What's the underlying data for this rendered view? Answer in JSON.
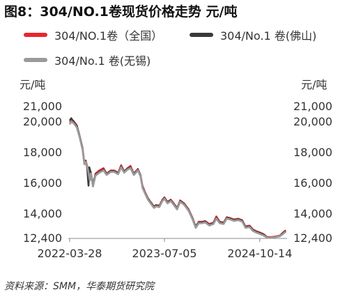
{
  "title": "图8：304/NO.1卷现货价格走势  元/吨",
  "source": "资料来源：SMM，华泰期货研究院",
  "chart_data": {
    "type": "line",
    "title": "304/NO.1卷现货价格走势",
    "unit_left": "元/吨",
    "unit_right": "元/吨",
    "ylim": [
      12400,
      21000
    ],
    "yticks": [
      "21,000",
      "20,000",
      "18,000",
      "16,000",
      "14,000",
      "12,400"
    ],
    "ytick_values": [
      21000,
      20000,
      18000,
      16000,
      14000,
      12400
    ],
    "xticks": [
      "2022-03-28",
      "2023-07-05",
      "2024-10-14"
    ],
    "xtick_dates": [
      "2022-03-28",
      "2023-07-05",
      "2024-10-14"
    ],
    "xlim": [
      "2022-03-28",
      "2025-02-18"
    ],
    "grid": false,
    "legend_position": "top",
    "series": [
      {
        "name": "304/NO.1卷（全国）",
        "color": "#e8262c",
        "points": [
          [
            "2022-03-28",
            19950
          ],
          [
            "2022-04-05",
            20150
          ],
          [
            "2022-04-18",
            20000
          ],
          [
            "2022-05-02",
            19750
          ],
          [
            "2022-05-16",
            19050
          ],
          [
            "2022-05-30",
            18300
          ],
          [
            "2022-06-08",
            17300
          ],
          [
            "2022-06-15",
            17450
          ],
          [
            "2022-06-25",
            16950
          ],
          [
            "2022-07-05",
            16200
          ],
          [
            "2022-07-10",
            16700
          ],
          [
            "2022-07-20",
            15800
          ],
          [
            "2022-08-01",
            16600
          ],
          [
            "2022-08-20",
            16800
          ],
          [
            "2022-09-10",
            16950
          ],
          [
            "2022-09-25",
            16600
          ],
          [
            "2022-10-15",
            16800
          ],
          [
            "2022-11-01",
            16800
          ],
          [
            "2022-11-20",
            16650
          ],
          [
            "2022-12-05",
            17150
          ],
          [
            "2022-12-20",
            16750
          ],
          [
            "2023-01-05",
            16950
          ],
          [
            "2023-01-20",
            17100
          ],
          [
            "2023-02-05",
            16600
          ],
          [
            "2023-02-25",
            16900
          ],
          [
            "2023-03-10",
            16500
          ],
          [
            "2023-03-20",
            15800
          ],
          [
            "2023-04-01",
            15400
          ],
          [
            "2023-04-15",
            15000
          ],
          [
            "2023-05-01",
            14700
          ],
          [
            "2023-05-15",
            14450
          ],
          [
            "2023-05-25",
            14550
          ],
          [
            "2023-06-10",
            14500
          ],
          [
            "2023-06-25",
            14900
          ],
          [
            "2023-07-05",
            15050
          ],
          [
            "2023-07-20",
            14750
          ],
          [
            "2023-08-05",
            14900
          ],
          [
            "2023-08-20",
            14650
          ],
          [
            "2023-09-05",
            14350
          ],
          [
            "2023-09-20",
            14850
          ],
          [
            "2023-10-10",
            14650
          ],
          [
            "2023-11-01",
            14250
          ],
          [
            "2023-11-20",
            13700
          ],
          [
            "2023-12-05",
            13150
          ],
          [
            "2023-12-20",
            13450
          ],
          [
            "2024-01-05",
            13450
          ],
          [
            "2024-01-20",
            13500
          ],
          [
            "2024-02-10",
            13300
          ],
          [
            "2024-03-01",
            13400
          ],
          [
            "2024-03-15",
            13800
          ],
          [
            "2024-04-01",
            13450
          ],
          [
            "2024-04-20",
            13400
          ],
          [
            "2024-05-05",
            13750
          ],
          [
            "2024-05-20",
            13700
          ],
          [
            "2024-06-10",
            13600
          ],
          [
            "2024-07-01",
            13650
          ],
          [
            "2024-07-20",
            13550
          ],
          [
            "2024-08-05",
            13150
          ],
          [
            "2024-08-25",
            13200
          ],
          [
            "2024-09-10",
            12950
          ],
          [
            "2024-09-25",
            12850
          ],
          [
            "2024-10-14",
            12750
          ],
          [
            "2024-11-01",
            12650
          ],
          [
            "2024-11-20",
            12450
          ],
          [
            "2024-12-10",
            12450
          ],
          [
            "2025-01-01",
            12500
          ],
          [
            "2025-01-20",
            12550
          ],
          [
            "2025-02-05",
            12750
          ],
          [
            "2025-02-18",
            12900
          ]
        ]
      },
      {
        "name": "304/No.1 卷(佛山)",
        "color": "#3a3a3a",
        "points": [
          [
            "2022-03-28",
            20050
          ],
          [
            "2022-04-05",
            20200
          ],
          [
            "2022-04-18",
            19900
          ],
          [
            "2022-05-02",
            19700
          ],
          [
            "2022-05-16",
            19000
          ],
          [
            "2022-05-30",
            18200
          ],
          [
            "2022-06-08",
            17250
          ],
          [
            "2022-06-15",
            17400
          ],
          [
            "2022-06-22",
            16900
          ],
          [
            "2022-06-28",
            15800
          ],
          [
            "2022-07-02",
            17000
          ],
          [
            "2022-07-10",
            16600
          ],
          [
            "2022-07-20",
            15900
          ],
          [
            "2022-08-01",
            16500
          ],
          [
            "2022-08-20",
            16700
          ],
          [
            "2022-09-10",
            16850
          ],
          [
            "2022-09-25",
            16550
          ],
          [
            "2022-10-15",
            16750
          ],
          [
            "2022-11-01",
            16750
          ],
          [
            "2022-11-20",
            16600
          ],
          [
            "2022-12-05",
            17050
          ],
          [
            "2022-12-20",
            16700
          ],
          [
            "2023-01-05",
            16900
          ],
          [
            "2023-01-20",
            17000
          ],
          [
            "2023-02-05",
            16550
          ],
          [
            "2023-02-25",
            16850
          ],
          [
            "2023-03-10",
            16450
          ],
          [
            "2023-03-20",
            15700
          ],
          [
            "2023-04-01",
            15350
          ],
          [
            "2023-04-15",
            14950
          ],
          [
            "2023-05-01",
            14650
          ],
          [
            "2023-05-15",
            14400
          ],
          [
            "2023-05-25",
            14500
          ],
          [
            "2023-06-10",
            14450
          ],
          [
            "2023-06-25",
            14850
          ],
          [
            "2023-07-05",
            15000
          ],
          [
            "2023-07-20",
            14700
          ],
          [
            "2023-08-05",
            14850
          ],
          [
            "2023-08-20",
            14600
          ],
          [
            "2023-09-05",
            14300
          ],
          [
            "2023-09-20",
            14800
          ],
          [
            "2023-10-10",
            14600
          ],
          [
            "2023-11-01",
            14200
          ],
          [
            "2023-11-20",
            13650
          ],
          [
            "2023-12-05",
            13100
          ],
          [
            "2023-12-20",
            13400
          ],
          [
            "2024-01-05",
            13400
          ],
          [
            "2024-01-20",
            13450
          ],
          [
            "2024-02-10",
            13250
          ],
          [
            "2024-03-01",
            13350
          ],
          [
            "2024-03-15",
            13700
          ],
          [
            "2024-04-01",
            13400
          ],
          [
            "2024-04-20",
            13350
          ],
          [
            "2024-05-05",
            13700
          ],
          [
            "2024-05-20",
            13650
          ],
          [
            "2024-06-10",
            13550
          ],
          [
            "2024-07-01",
            13600
          ],
          [
            "2024-07-20",
            13500
          ],
          [
            "2024-08-05",
            13100
          ],
          [
            "2024-08-25",
            13150
          ],
          [
            "2024-09-10",
            12900
          ],
          [
            "2024-09-25",
            12800
          ],
          [
            "2024-10-14",
            12700
          ],
          [
            "2024-11-01",
            12600
          ],
          [
            "2024-11-20",
            12400
          ],
          [
            "2024-12-10",
            12400
          ],
          [
            "2025-01-01",
            12450
          ],
          [
            "2025-01-20",
            12500
          ],
          [
            "2025-02-05",
            12700
          ],
          [
            "2025-02-18",
            12850
          ]
        ]
      },
      {
        "name": "304/No.1 卷(无锡)",
        "color": "#9a9a9a",
        "points": [
          [
            "2022-03-28",
            19800
          ],
          [
            "2022-04-05",
            20000
          ],
          [
            "2022-04-18",
            19850
          ],
          [
            "2022-05-02",
            19600
          ],
          [
            "2022-05-16",
            18950
          ],
          [
            "2022-05-30",
            18150
          ],
          [
            "2022-06-08",
            17200
          ],
          [
            "2022-06-15",
            17350
          ],
          [
            "2022-06-25",
            16850
          ],
          [
            "2022-07-05",
            16150
          ],
          [
            "2022-07-10",
            16600
          ],
          [
            "2022-07-20",
            15750
          ],
          [
            "2022-08-01",
            16450
          ],
          [
            "2022-08-20",
            16650
          ],
          [
            "2022-09-10",
            16800
          ],
          [
            "2022-09-25",
            16500
          ],
          [
            "2022-10-15",
            16700
          ],
          [
            "2022-11-01",
            16700
          ],
          [
            "2022-11-20",
            16550
          ],
          [
            "2022-12-05",
            17000
          ],
          [
            "2022-12-20",
            16650
          ],
          [
            "2023-01-05",
            16850
          ],
          [
            "2023-01-20",
            16950
          ],
          [
            "2023-02-05",
            16500
          ],
          [
            "2023-02-25",
            16800
          ],
          [
            "2023-03-10",
            16400
          ],
          [
            "2023-03-20",
            15650
          ],
          [
            "2023-04-01",
            15300
          ],
          [
            "2023-04-15",
            14900
          ],
          [
            "2023-05-01",
            14600
          ],
          [
            "2023-05-15",
            14350
          ],
          [
            "2023-05-25",
            14450
          ],
          [
            "2023-06-10",
            14400
          ],
          [
            "2023-06-25",
            14800
          ],
          [
            "2023-07-05",
            14950
          ],
          [
            "2023-07-20",
            14650
          ],
          [
            "2023-08-05",
            14800
          ],
          [
            "2023-08-20",
            14550
          ],
          [
            "2023-09-05",
            14250
          ],
          [
            "2023-09-20",
            14750
          ],
          [
            "2023-10-10",
            14550
          ],
          [
            "2023-11-01",
            14150
          ],
          [
            "2023-11-20",
            13600
          ],
          [
            "2023-12-05",
            13050
          ],
          [
            "2023-12-20",
            13350
          ],
          [
            "2024-01-05",
            13350
          ],
          [
            "2024-01-20",
            13400
          ],
          [
            "2024-02-10",
            13200
          ],
          [
            "2024-03-01",
            13300
          ],
          [
            "2024-03-15",
            13650
          ],
          [
            "2024-04-01",
            13350
          ],
          [
            "2024-04-20",
            13300
          ],
          [
            "2024-05-05",
            13650
          ],
          [
            "2024-05-20",
            13600
          ],
          [
            "2024-06-10",
            13500
          ],
          [
            "2024-07-01",
            13550
          ],
          [
            "2024-07-20",
            13450
          ],
          [
            "2024-08-05",
            13050
          ],
          [
            "2024-08-25",
            13100
          ],
          [
            "2024-09-10",
            12850
          ],
          [
            "2024-09-25",
            12750
          ],
          [
            "2024-10-14",
            12650
          ],
          [
            "2024-11-01",
            12550
          ],
          [
            "2024-11-20",
            12400
          ],
          [
            "2024-12-10",
            12400
          ],
          [
            "2025-01-01",
            12450
          ],
          [
            "2025-01-20",
            12500
          ],
          [
            "2025-02-05",
            12650
          ],
          [
            "2025-02-18",
            12800
          ]
        ]
      }
    ]
  }
}
